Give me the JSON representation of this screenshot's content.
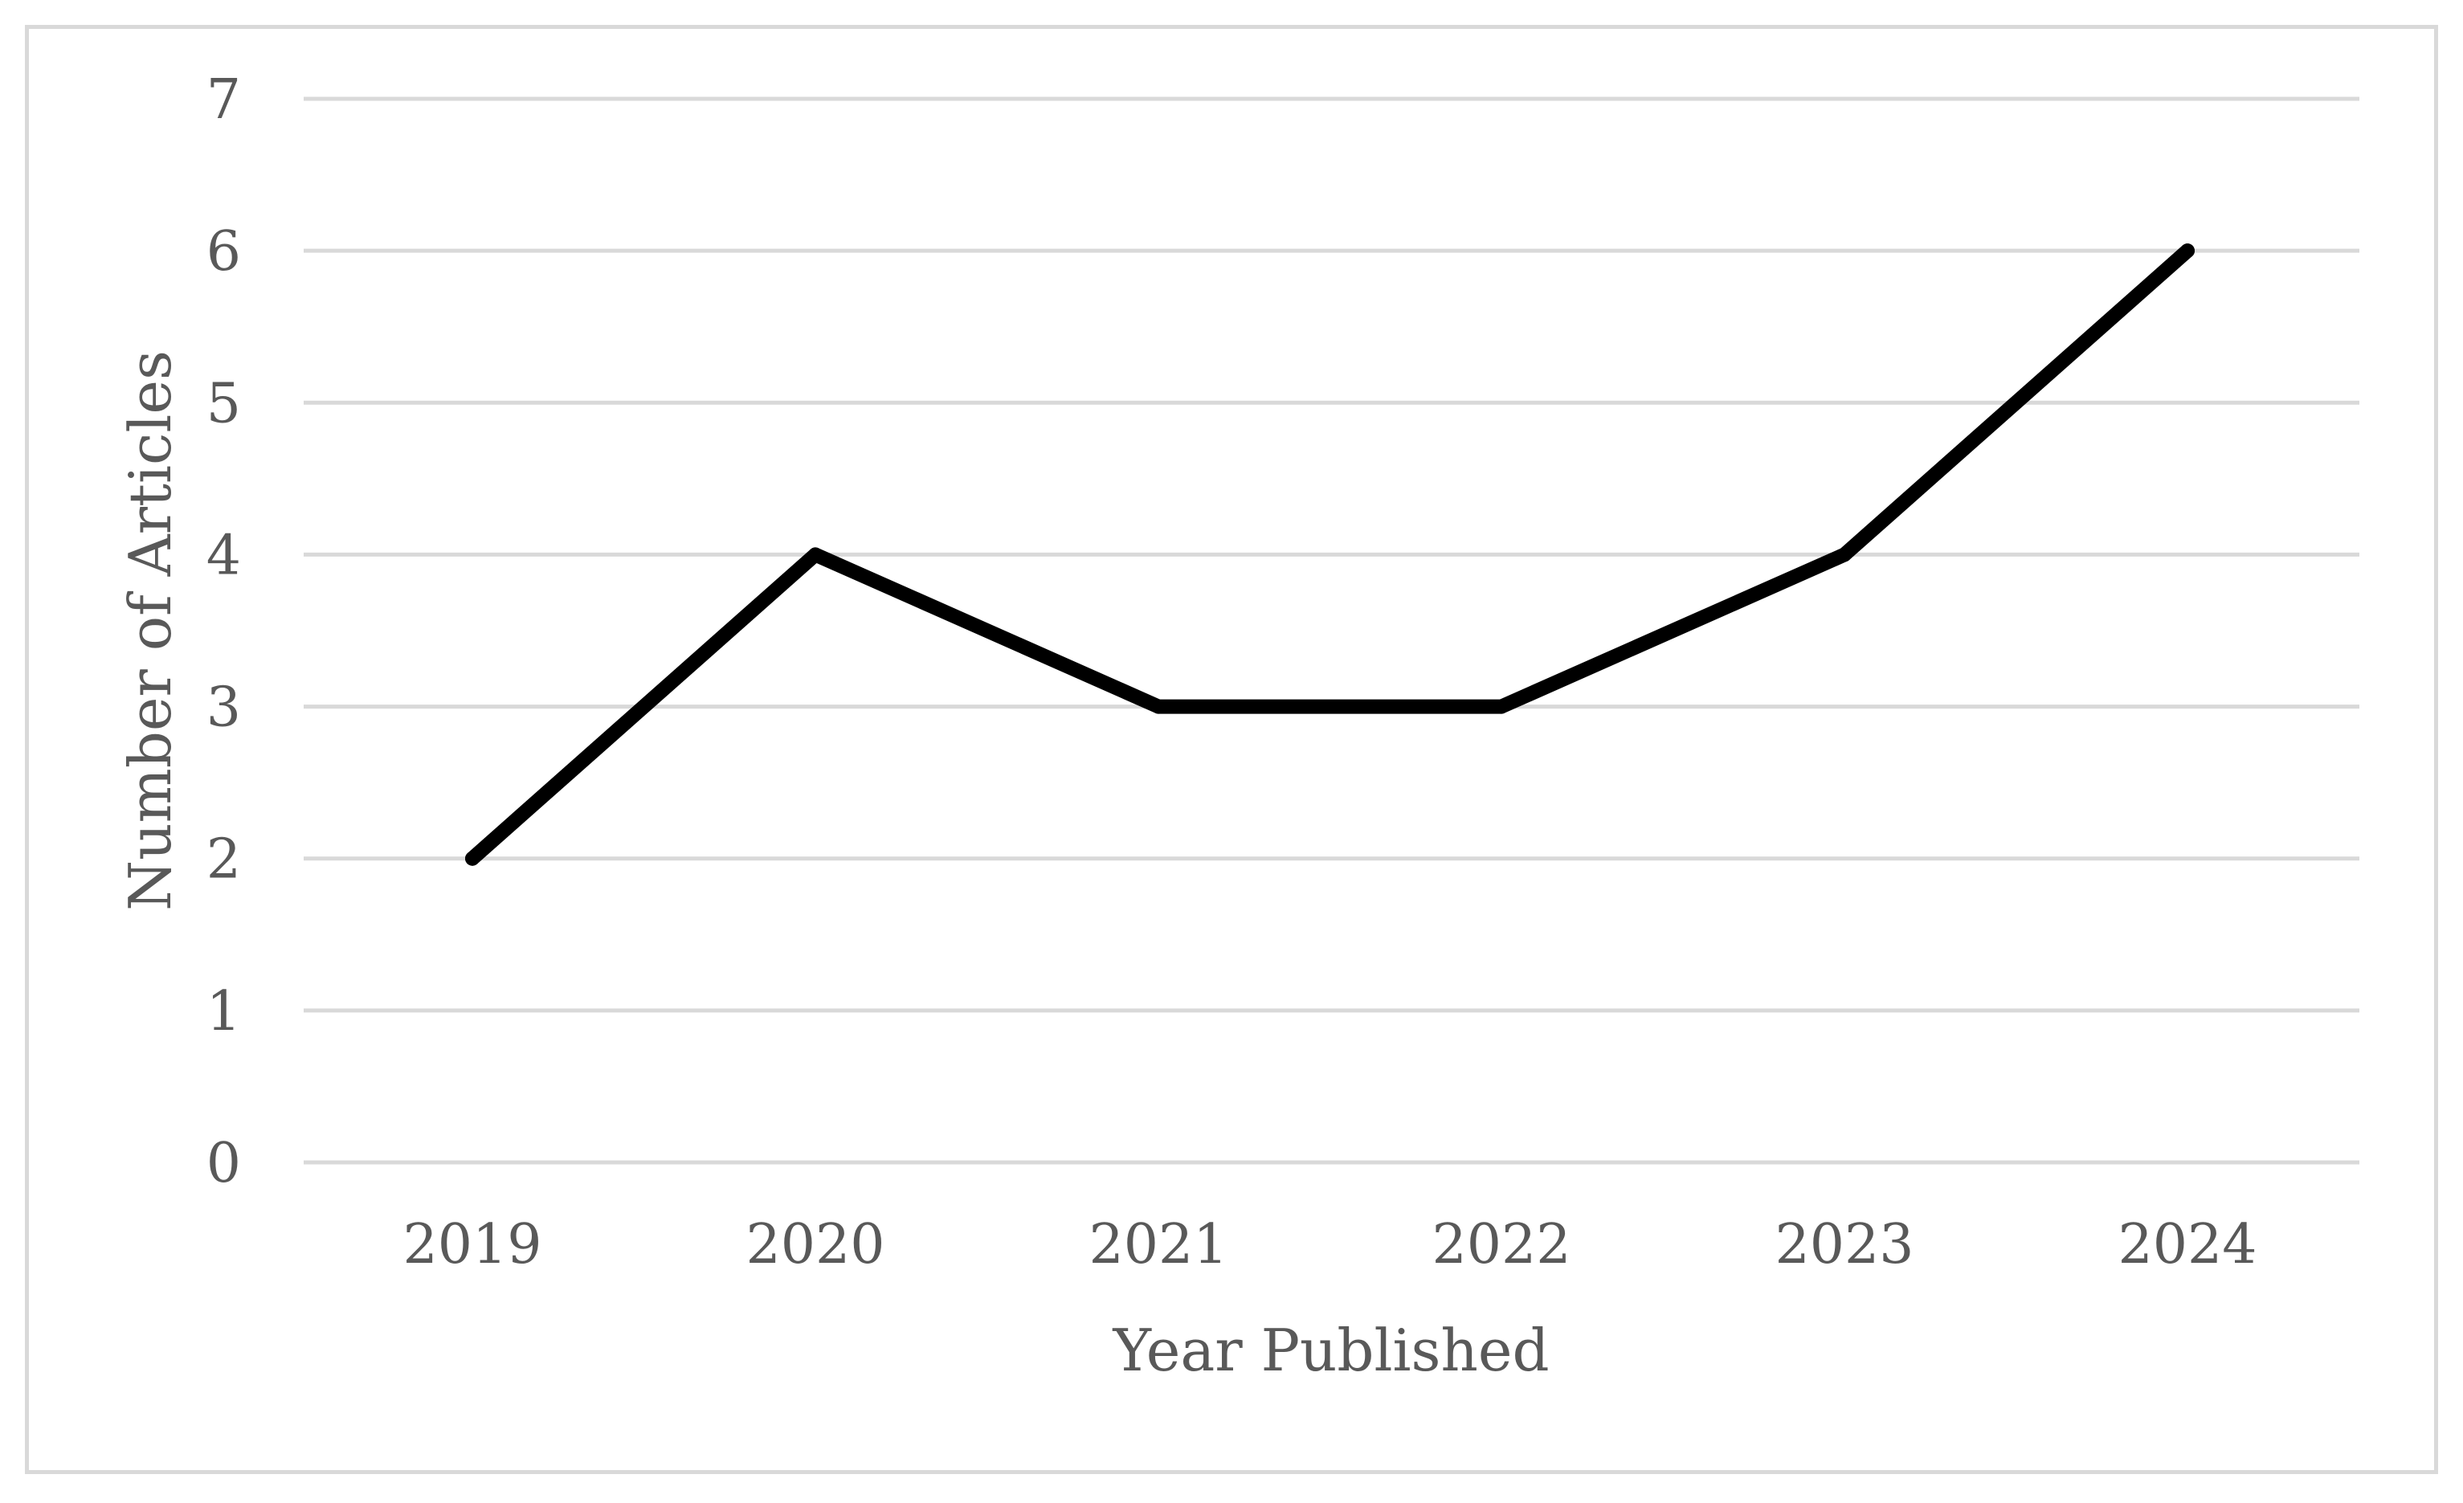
{
  "chart_data": {
    "type": "line",
    "title": "",
    "xlabel": "Year Published",
    "ylabel": "Number of Articles",
    "categories": [
      "2019",
      "2020",
      "2021",
      "2022",
      "2023",
      "2024"
    ],
    "values": [
      2,
      4,
      3,
      3,
      4,
      6
    ],
    "ylim": [
      0,
      7
    ],
    "yticks": [
      "0",
      "1",
      "2",
      "3",
      "4",
      "5",
      "6",
      "7"
    ],
    "grid": true,
    "legend": "none",
    "colors": {
      "series": "#000000",
      "grid": "#d9d9d9",
      "text": "#595959",
      "frame": "#d9d9d9"
    }
  }
}
